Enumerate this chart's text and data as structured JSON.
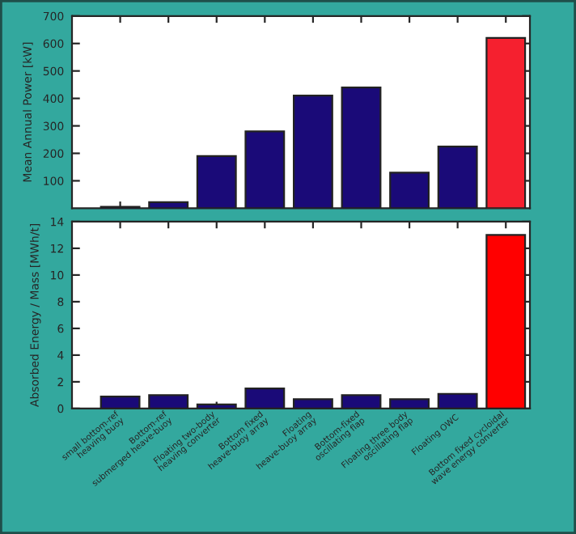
{
  "chart_data": [
    {
      "type": "bar",
      "ylabel": "Mean Annual Power [kW]",
      "categories": [
        null,
        null,
        null,
        null,
        null,
        null,
        null,
        null,
        null
      ],
      "values": [
        5,
        22,
        190,
        280,
        410,
        440,
        130,
        225,
        620
      ],
      "colors": [
        "#1a0a78",
        "#1a0a78",
        "#1a0a78",
        "#1a0a78",
        "#1a0a78",
        "#1a0a78",
        "#1a0a78",
        "#1a0a78",
        "#f5202f"
      ],
      "ylim": [
        0,
        700
      ],
      "yticks": [
        100,
        200,
        300,
        400,
        500,
        600,
        700
      ],
      "tick_labels": "y",
      "grid": false,
      "legend": false
    },
    {
      "type": "bar",
      "ylabel": "Absorbed Energy / Mass [MWh/t]",
      "categories": [
        "small bottom-ref\nheaving buoy",
        "Bottom-ref\nsubmerged heave-buoy",
        "Floating two-body\nheaving converter",
        "Bottom fixed\nheave-buoy array",
        "Floating\nheave-buoy array",
        "Bottom-fixed\noscillating flap",
        "Floating three body\noscillating flap",
        "Floating OWC",
        "Bottom fixed cycloidal\nwave energy converter"
      ],
      "values": [
        0.9,
        1.0,
        0.3,
        1.5,
        0.7,
        1.0,
        0.7,
        1.1,
        13
      ],
      "colors": [
        "#1a0a78",
        "#1a0a78",
        "#1a0a78",
        "#1a0a78",
        "#1a0a78",
        "#1a0a78",
        "#1a0a78",
        "#1a0a78",
        "#ff0000"
      ],
      "ylim": [
        0,
        14
      ],
      "yticks": [
        0,
        2,
        4,
        6,
        8,
        10,
        12,
        14
      ],
      "grid": false,
      "legend": false
    }
  ]
}
